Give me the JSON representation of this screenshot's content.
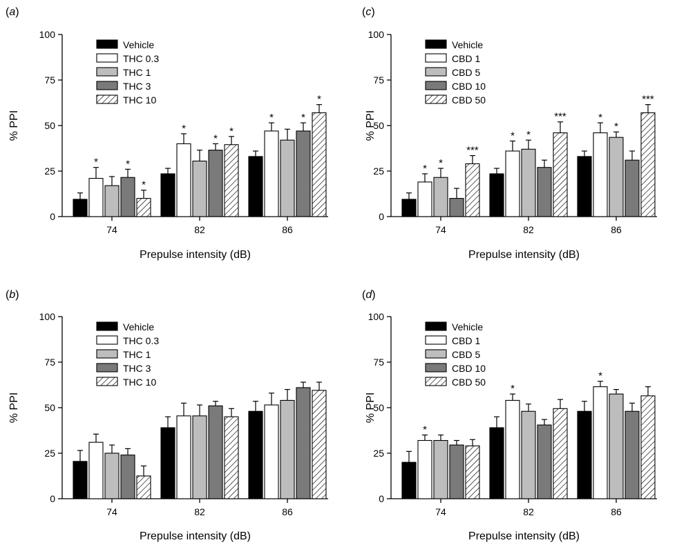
{
  "chart_data": [
    {
      "panel": "a",
      "type": "bar",
      "xlabel": "Prepulse intensity (dB)",
      "ylabel": "% PPI",
      "ylim": [
        0,
        100
      ],
      "yticks": [
        "0",
        "25",
        "50",
        "75",
        "100"
      ],
      "categories": [
        "74",
        "82",
        "86"
      ],
      "legend_position": "top-left",
      "series": [
        {
          "name": "Vehicle",
          "fill": "black",
          "values": [
            9.5,
            23.5,
            33
          ],
          "errors": [
            3.5,
            3,
            3
          ],
          "sig": [
            "",
            "",
            ""
          ]
        },
        {
          "name": "THC 0.3",
          "fill": "white",
          "values": [
            21,
            40,
            47
          ],
          "errors": [
            6,
            5.5,
            4.5
          ],
          "sig": [
            "*",
            "*",
            "*"
          ]
        },
        {
          "name": "THC 1",
          "fill": "lightgray",
          "values": [
            17,
            30.5,
            42
          ],
          "errors": [
            5,
            6,
            6
          ],
          "sig": [
            "",
            "",
            ""
          ]
        },
        {
          "name": "THC 3",
          "fill": "darkgray",
          "values": [
            21.5,
            36.5,
            47
          ],
          "errors": [
            4.5,
            3.5,
            4.5
          ],
          "sig": [
            "*",
            "*",
            "*"
          ]
        },
        {
          "name": "THC 10",
          "fill": "hatch",
          "values": [
            10,
            39.5,
            57
          ],
          "errors": [
            4.5,
            4.5,
            4.5
          ],
          "sig": [
            "*",
            "*",
            "*"
          ]
        }
      ]
    },
    {
      "panel": "c",
      "type": "bar",
      "xlabel": "Prepulse intensity (dB)",
      "ylabel": "% PPI",
      "ylim": [
        0,
        100
      ],
      "yticks": [
        "0",
        "25",
        "50",
        "75",
        "100"
      ],
      "categories": [
        "74",
        "82",
        "86"
      ],
      "legend_position": "top-left",
      "series": [
        {
          "name": "Vehicle",
          "fill": "black",
          "values": [
            9.5,
            23.5,
            33
          ],
          "errors": [
            3.5,
            3,
            3
          ],
          "sig": [
            "",
            "",
            ""
          ]
        },
        {
          "name": "CBD 1",
          "fill": "white",
          "values": [
            19,
            36,
            46
          ],
          "errors": [
            4.5,
            5.5,
            5.5
          ],
          "sig": [
            "*",
            "*",
            "*"
          ]
        },
        {
          "name": "CBD 5",
          "fill": "lightgray",
          "values": [
            21.5,
            37,
            43.5
          ],
          "errors": [
            5,
            5,
            3
          ],
          "sig": [
            "*",
            "*",
            "*"
          ]
        },
        {
          "name": "CBD 10",
          "fill": "darkgray",
          "values": [
            10,
            27,
            31
          ],
          "errors": [
            5.5,
            4,
            5
          ],
          "sig": [
            "",
            "",
            ""
          ]
        },
        {
          "name": "CBD 50",
          "fill": "hatch",
          "values": [
            29,
            46,
            57
          ],
          "errors": [
            4.5,
            6,
            4.5
          ],
          "sig": [
            "***",
            "***",
            "***"
          ]
        }
      ]
    },
    {
      "panel": "b",
      "type": "bar",
      "xlabel": "Prepulse intensity (dB)",
      "ylabel": "% PPI",
      "ylim": [
        0,
        100
      ],
      "yticks": [
        "0",
        "25",
        "50",
        "75",
        "100"
      ],
      "categories": [
        "74",
        "82",
        "86"
      ],
      "legend_position": "top-left",
      "series": [
        {
          "name": "Vehicle",
          "fill": "black",
          "values": [
            20.5,
            39,
            48
          ],
          "errors": [
            6,
            6,
            5.5
          ],
          "sig": [
            "",
            "",
            ""
          ]
        },
        {
          "name": "THC 0.3",
          "fill": "white",
          "values": [
            31,
            45.5,
            51.5
          ],
          "errors": [
            4.5,
            7,
            6.5
          ],
          "sig": [
            "",
            "",
            ""
          ]
        },
        {
          "name": "THC 1",
          "fill": "lightgray",
          "values": [
            25,
            45.5,
            54
          ],
          "errors": [
            4.5,
            6,
            6
          ],
          "sig": [
            "",
            "",
            ""
          ]
        },
        {
          "name": "THC 3",
          "fill": "darkgray",
          "values": [
            24,
            51,
            61
          ],
          "errors": [
            3.5,
            2.5,
            3
          ],
          "sig": [
            "",
            "",
            ""
          ]
        },
        {
          "name": "THC 10",
          "fill": "hatch",
          "values": [
            12.5,
            45,
            59.5
          ],
          "errors": [
            5.5,
            4.5,
            4.5
          ],
          "sig": [
            "",
            "",
            ""
          ]
        }
      ]
    },
    {
      "panel": "d",
      "type": "bar",
      "xlabel": "Prepulse intensity (dB)",
      "ylabel": "% PPI",
      "ylim": [
        0,
        100
      ],
      "yticks": [
        "0",
        "25",
        "50",
        "75",
        "100"
      ],
      "categories": [
        "74",
        "82",
        "86"
      ],
      "legend_position": "top-left",
      "series": [
        {
          "name": "Vehicle",
          "fill": "black",
          "values": [
            20,
            39,
            48
          ],
          "errors": [
            6,
            6,
            5.5
          ],
          "sig": [
            "",
            "",
            ""
          ]
        },
        {
          "name": "CBD 1",
          "fill": "white",
          "values": [
            32,
            54,
            61.5
          ],
          "errors": [
            3,
            3.5,
            3
          ],
          "sig": [
            "*",
            "*",
            "*"
          ]
        },
        {
          "name": "CBD 5",
          "fill": "lightgray",
          "values": [
            32,
            48,
            57.5
          ],
          "errors": [
            3,
            4,
            2.5
          ],
          "sig": [
            "",
            "",
            ""
          ]
        },
        {
          "name": "CBD 10",
          "fill": "darkgray",
          "values": [
            29.5,
            40.5,
            48
          ],
          "errors": [
            2.5,
            3,
            4.5
          ],
          "sig": [
            "",
            "",
            ""
          ]
        },
        {
          "name": "CBD 50",
          "fill": "hatch",
          "values": [
            29,
            49.5,
            56.5
          ],
          "errors": [
            3.5,
            5,
            5
          ],
          "sig": [
            "",
            "",
            ""
          ]
        }
      ]
    }
  ]
}
